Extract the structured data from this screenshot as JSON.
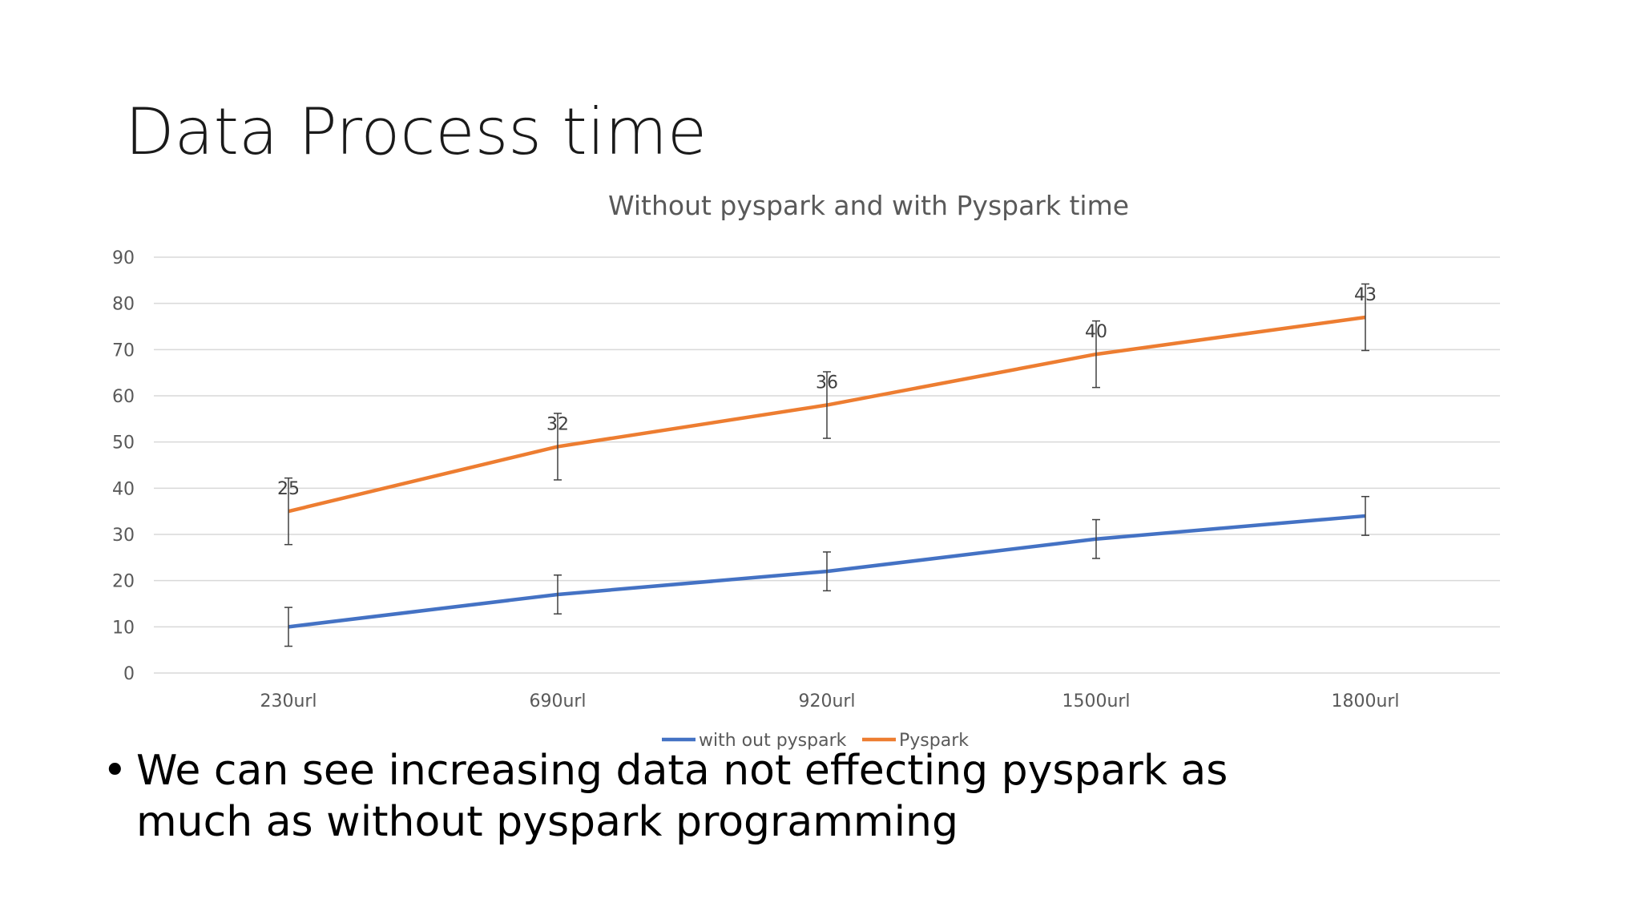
{
  "slide": {
    "title": "Data Process time",
    "bullet": "We can see increasing data not effecting pyspark as much as without pyspark programming",
    "bullet_marker": "•"
  },
  "chart_data": {
    "type": "line",
    "title": "Without pyspark and with Pyspark time",
    "categories": [
      "230url",
      "690url",
      "920url",
      "1500url",
      "1800url"
    ],
    "ylim": [
      0,
      90
    ],
    "yticks": [
      0,
      10,
      20,
      30,
      40,
      50,
      60,
      70,
      80,
      90
    ],
    "grid": true,
    "legend_position": "bottom",
    "series": [
      {
        "name": "with out pyspark",
        "color": "#4472c4",
        "values": [
          10,
          17,
          22,
          29,
          34
        ],
        "error": [
          4.2,
          4.2,
          4.2,
          4.2,
          4.2
        ]
      },
      {
        "name": "Pyspark",
        "color": "#ed7d31",
        "values": [
          35,
          49,
          58,
          69,
          77
        ],
        "error": [
          7.2,
          7.2,
          7.2,
          7.2,
          7.2
        ],
        "data_labels": [
          "25",
          "32",
          "36",
          "40",
          "43"
        ]
      }
    ],
    "text_color": "#595959",
    "grid_color": "#d9d9d9"
  }
}
